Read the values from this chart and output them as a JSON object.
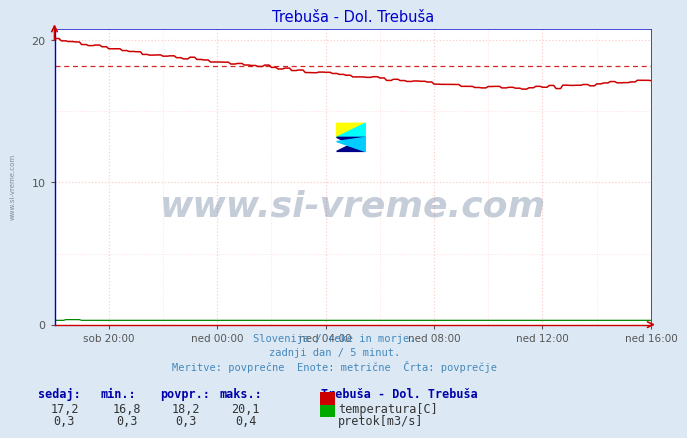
{
  "title": "Trebuša - Dol. Trebuša",
  "background_color": "#dce9f5",
  "plot_bg_color": "#ffffff",
  "grid_color_h": "#ffcccc",
  "grid_color_v": "#ffcccc",
  "temp_color": "#cc0000",
  "flow_color": "#008800",
  "avg_line_color": "#cc0000",
  "avg_temp": 18.2,
  "temp_min": 16.8,
  "temp_max": 20.1,
  "temp_current": 17.2,
  "flow_min": 0.3,
  "flow_max": 0.4,
  "flow_avg": 0.3,
  "flow_current": 0.3,
  "ylim": [
    0,
    20.833
  ],
  "yticks": [
    0,
    10,
    20
  ],
  "xlabel_ticks": [
    "sob 20:00",
    "ned 00:00",
    "ned 04:00",
    "ned 08:00",
    "ned 12:00",
    "ned 16:00"
  ],
  "n_points": 265,
  "subtitle_lines": [
    "Slovenija / reke in morje.",
    "zadnji dan / 5 minut.",
    "Meritve: povprečne  Enote: metrične  Črta: povprečje"
  ],
  "legend_title": "Trebuša - Dol. Trebuša",
  "legend_temp_label": "temperatura[C]",
  "legend_flow_label": "pretok[m3/s]",
  "table_headers": [
    "sedaj:",
    "min.:",
    "povpr.:",
    "maks.:"
  ],
  "table_temp": [
    "17,2",
    "16,8",
    "18,2",
    "20,1"
  ],
  "table_flow": [
    "0,3",
    "0,3",
    "0,3",
    "0,4"
  ],
  "title_color": "#0000cc",
  "watermark_text": "www.si-vreme.com",
  "watermark_color": "#1a3a6a",
  "watermark_alpha": 0.25,
  "side_watermark_text": "www.si-vreme.com",
  "spine_left_color": "#0000cc",
  "spine_bottom_color": "#cc0000",
  "tick_label_color": "#555555",
  "subtitle_color": "#4488bb",
  "table_header_color": "#0000aa",
  "table_value_color": "#333333"
}
